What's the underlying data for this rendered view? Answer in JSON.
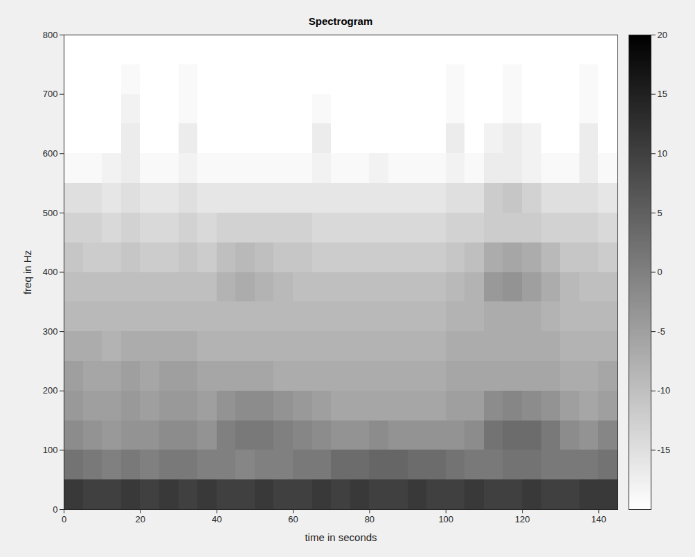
{
  "chart_data": {
    "type": "heatmap",
    "title": "Spectrogram",
    "x_label": "time in seconds",
    "y_label": "freq in Hz",
    "x": [
      0,
      5,
      10,
      15,
      20,
      25,
      30,
      35,
      40,
      45,
      50,
      55,
      60,
      65,
      70,
      75,
      80,
      85,
      90,
      95,
      100,
      105,
      110,
      115,
      120,
      125,
      130,
      135,
      140,
      145
    ],
    "y": [
      0,
      50,
      100,
      150,
      200,
      250,
      300,
      350,
      400,
      450,
      500,
      550,
      600,
      650,
      700,
      750,
      800
    ],
    "values": [
      [
        11,
        10,
        10,
        11,
        10,
        11,
        10,
        11,
        10,
        10,
        11,
        10,
        10,
        11,
        10,
        11,
        10,
        10,
        11,
        10,
        10,
        11,
        10,
        10,
        11,
        10,
        10,
        11,
        11
      ],
      [
        2,
        1,
        0,
        1,
        0,
        1,
        1,
        0,
        0,
        -1,
        0,
        0,
        1,
        1,
        3,
        3,
        4,
        4,
        3,
        3,
        2,
        1,
        1,
        2,
        2,
        1,
        1,
        1,
        2
      ],
      [
        -2,
        -3,
        -4,
        -3,
        -3,
        -2,
        -2,
        -3,
        0,
        1,
        1,
        0,
        -1,
        -2,
        -3,
        -3,
        -2,
        -3,
        -3,
        -3,
        -3,
        -2,
        2,
        3,
        3,
        1,
        -2,
        -3,
        -1
      ],
      [
        -4,
        -5,
        -5,
        -4,
        -5,
        -4,
        -4,
        -5,
        -3,
        -2,
        -2,
        -3,
        -4,
        -5,
        -6,
        -6,
        -6,
        -6,
        -6,
        -6,
        -5,
        -5,
        -2,
        -1,
        -2,
        -3,
        -5,
        -6,
        -5
      ],
      [
        -5,
        -6,
        -6,
        -5,
        -6,
        -5,
        -5,
        -6,
        -6,
        -6,
        -6,
        -7,
        -7,
        -7,
        -7,
        -7,
        -7,
        -7,
        -7,
        -7,
        -6,
        -6,
        -6,
        -6,
        -6,
        -6,
        -7,
        -7,
        -6
      ],
      [
        -7,
        -7,
        -8,
        -7,
        -7,
        -7,
        -7,
        -8,
        -8,
        -8,
        -8,
        -8,
        -8,
        -8,
        -8,
        -8,
        -8,
        -8,
        -8,
        -8,
        -7,
        -7,
        -7,
        -7,
        -7,
        -7,
        -8,
        -8,
        -8
      ],
      [
        -9,
        -9,
        -9,
        -9,
        -9,
        -9,
        -9,
        -9,
        -9,
        -9,
        -9,
        -9,
        -9,
        -9,
        -9,
        -9,
        -9,
        -9,
        -9,
        -9,
        -8,
        -8,
        -7,
        -7,
        -7,
        -8,
        -9,
        -9,
        -9
      ],
      [
        -10,
        -10,
        -10,
        -10,
        -10,
        -10,
        -10,
        -10,
        -8,
        -7,
        -8,
        -9,
        -10,
        -10,
        -10,
        -10,
        -10,
        -10,
        -10,
        -10,
        -9,
        -8,
        -4,
        -3,
        -5,
        -7,
        -9,
        -10,
        -10
      ],
      [
        -11,
        -12,
        -12,
        -11,
        -12,
        -12,
        -11,
        -12,
        -10,
        -9,
        -10,
        -11,
        -11,
        -12,
        -12,
        -12,
        -12,
        -12,
        -12,
        -12,
        -11,
        -10,
        -7,
        -6,
        -7,
        -9,
        -11,
        -11,
        -12
      ],
      [
        -13,
        -13,
        -14,
        -13,
        -14,
        -14,
        -13,
        -14,
        -13,
        -13,
        -13,
        -13,
        -13,
        -14,
        -14,
        -14,
        -14,
        -14,
        -14,
        -14,
        -13,
        -13,
        -12,
        -12,
        -12,
        -13,
        -13,
        -13,
        -14
      ],
      [
        -15,
        -15,
        -16,
        -15,
        -16,
        -16,
        -15,
        -16,
        -16,
        -16,
        -16,
        -16,
        -16,
        -16,
        -16,
        -16,
        -16,
        -16,
        -16,
        -16,
        -15,
        -15,
        -12,
        -11,
        -13,
        -15,
        -15,
        -15,
        -16
      ],
      [
        -19,
        -19,
        -18,
        -17,
        -19,
        -19,
        -18,
        -19,
        -19,
        -19,
        -19,
        -19,
        -19,
        -18,
        -19,
        -19,
        -18,
        -19,
        -19,
        -19,
        -18,
        -19,
        -17,
        -17,
        -18,
        -19,
        -19,
        -17,
        -19
      ],
      [
        -20,
        -20,
        -20,
        -17,
        -20,
        -20,
        -17,
        -20,
        -20,
        -20,
        -20,
        -20,
        -20,
        -17,
        -20,
        -20,
        -20,
        -20,
        -20,
        -20,
        -17,
        -20,
        -18,
        -17,
        -18,
        -20,
        -20,
        -17,
        -20
      ],
      [
        -20,
        -20,
        -20,
        -18,
        -20,
        -20,
        -19,
        -20,
        -20,
        -20,
        -20,
        -20,
        -20,
        -19,
        -20,
        -20,
        -20,
        -20,
        -20,
        -20,
        -19,
        -20,
        -20,
        -19,
        -20,
        -20,
        -20,
        -19,
        -20
      ],
      [
        -20,
        -20,
        -20,
        -19,
        -20,
        -20,
        -19,
        -20,
        -20,
        -20,
        -20,
        -20,
        -20,
        -20,
        -20,
        -20,
        -20,
        -20,
        -20,
        -20,
        -19,
        -20,
        -20,
        -19,
        -20,
        -20,
        -20,
        -19,
        -20
      ],
      [
        -20,
        -20,
        -20,
        -20,
        -20,
        -20,
        -20,
        -20,
        -20,
        -20,
        -20,
        -20,
        -20,
        -20,
        -20,
        -20,
        -20,
        -20,
        -20,
        -20,
        -20,
        -20,
        -20,
        -20,
        -20,
        -20,
        -20,
        -20,
        -20
      ]
    ],
    "xlim": [
      0,
      145
    ],
    "xticks": [
      0,
      20,
      40,
      60,
      80,
      100,
      120,
      140
    ],
    "ylim": [
      0,
      800
    ],
    "yticks": [
      0,
      100,
      200,
      300,
      400,
      500,
      600,
      700,
      800
    ],
    "color_range": [
      -20,
      20
    ],
    "color_ticks": [
      -15,
      -10,
      -5,
      0,
      5,
      10,
      15,
      20
    ],
    "grid": false
  }
}
